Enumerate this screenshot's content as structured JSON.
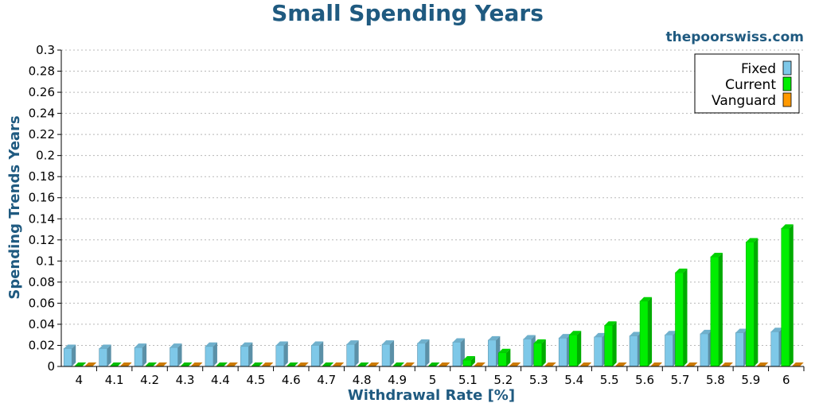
{
  "chart_data": {
    "type": "bar",
    "title": "Small Spending Years",
    "watermark": "thepoorswiss.com",
    "xlabel": "Withdrawal Rate [%]",
    "ylabel": "Spending Trends Years",
    "ylim": [
      0,
      0.3
    ],
    "yticks": [
      "0",
      "0.02",
      "0.04",
      "0.06",
      "0.08",
      "0.1",
      "0.12",
      "0.14",
      "0.16",
      "0.18",
      "0.2",
      "0.22",
      "0.24",
      "0.26",
      "0.28",
      "0.3"
    ],
    "categories": [
      "4",
      "4.1",
      "4.2",
      "4.3",
      "4.4",
      "4.5",
      "4.6",
      "4.7",
      "4.8",
      "4.9",
      "5",
      "5.1",
      "5.2",
      "5.3",
      "5.4",
      "5.5",
      "5.6",
      "5.7",
      "5.8",
      "5.9",
      "6"
    ],
    "grid": true,
    "legend_position": "top-right",
    "series": [
      {
        "name": "Fixed",
        "color": "#7ec8e8",
        "values": [
          0.017,
          0.017,
          0.018,
          0.018,
          0.019,
          0.019,
          0.02,
          0.02,
          0.021,
          0.021,
          0.022,
          0.023,
          0.025,
          0.026,
          0.027,
          0.028,
          0.029,
          0.03,
          0.031,
          0.032,
          0.033
        ]
      },
      {
        "name": "Current",
        "color": "#00ee00",
        "values": [
          0,
          0,
          0,
          0,
          0,
          0,
          0,
          0,
          0,
          0,
          0,
          0.006,
          0.013,
          0.022,
          0.03,
          0.039,
          0.062,
          0.089,
          0.104,
          0.118,
          0.131
        ]
      },
      {
        "name": "Vanguard",
        "color": "#ff9900",
        "values": [
          0,
          0,
          0,
          0,
          0,
          0,
          0,
          0,
          0,
          0,
          0,
          0,
          0,
          0,
          0,
          0,
          0,
          0,
          0,
          0,
          0
        ]
      }
    ]
  }
}
